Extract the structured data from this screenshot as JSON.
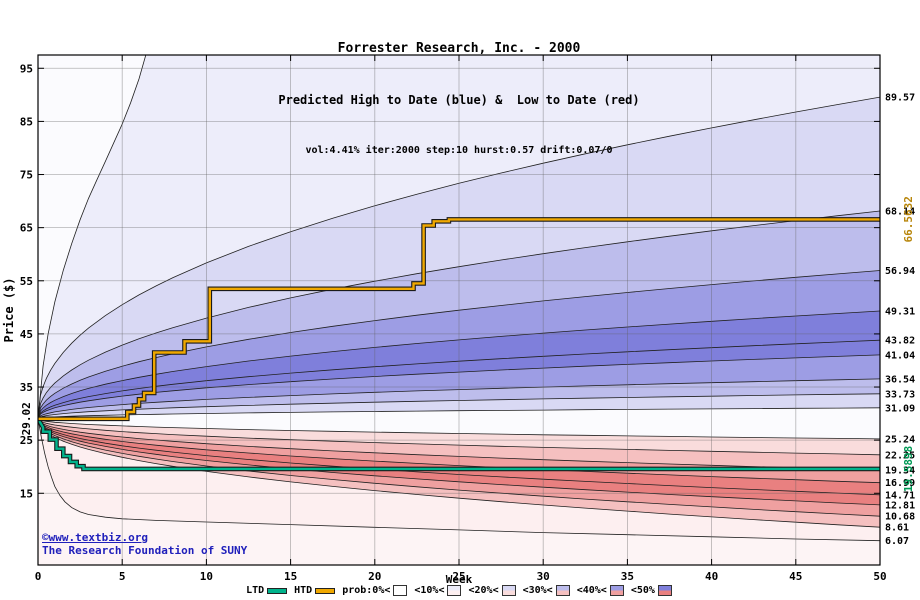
{
  "header": {
    "title": "Forrester Research, Inc. - 2000",
    "subtitle": "Predicted High to Date (blue) &  Low to Date (red)",
    "params": "vol:4.41% iter:2000 step:10 hurst:0.57 drift:0.07/0"
  },
  "watermark": {
    "link": "©www.textbiz.org",
    "org": "The Research Foundation of SUNY"
  },
  "chart_data": {
    "type": "area",
    "title": "Forrester Research, Inc. - 2000",
    "xlabel": "Week",
    "ylabel": "Price ($)",
    "xlim": [
      0,
      50
    ],
    "ylim": [
      1.5,
      97.5
    ],
    "x_ticks": [
      0,
      5,
      10,
      15,
      20,
      25,
      30,
      35,
      40,
      45,
      50
    ],
    "y_ticks": [
      15,
      25,
      35,
      45,
      55,
      65,
      75,
      85,
      95
    ],
    "grid": true,
    "start_price": 29.02,
    "start_label": "29.02",
    "shape_exponent": 0.45,
    "high_percentile_finals": [
      89.57,
      68.14,
      56.94,
      49.31,
      43.82,
      41.04,
      36.54,
      33.73,
      31.09
    ],
    "low_percentile_finals": [
      25.24,
      22.25,
      19.34,
      16.99,
      14.71,
      12.81,
      10.68,
      8.61
    ],
    "upper_envelope_points": [
      [
        0,
        29.02
      ],
      [
        0.3,
        39
      ],
      [
        0.6,
        45
      ],
      [
        1,
        51
      ],
      [
        1.5,
        57
      ],
      [
        2,
        62
      ],
      [
        2.5,
        66.5
      ],
      [
        3,
        70.5
      ],
      [
        3.5,
        74
      ],
      [
        4,
        77.5
      ],
      [
        4.5,
        81
      ],
      [
        5,
        84.5
      ],
      [
        5.5,
        88.5
      ],
      [
        6,
        93
      ],
      [
        6.4,
        97.5
      ],
      [
        6.7,
        101
      ]
    ],
    "lower_envelope_points": [
      [
        0,
        29.02
      ],
      [
        0.2,
        25.5
      ],
      [
        0.4,
        22.5
      ],
      [
        0.6,
        20
      ],
      [
        0.8,
        18
      ],
      [
        1,
        16.3
      ],
      [
        1.3,
        14.6
      ],
      [
        1.6,
        13.4
      ],
      [
        2,
        12.3
      ],
      [
        2.5,
        11.5
      ],
      [
        3,
        11.0
      ],
      [
        4,
        10.5
      ],
      [
        5,
        10.2
      ],
      [
        7,
        9.9
      ],
      [
        10,
        9.6
      ],
      [
        15,
        9.1
      ],
      [
        20,
        8.6
      ],
      [
        25,
        8.1
      ],
      [
        30,
        7.6
      ],
      [
        35,
        7.2
      ],
      [
        40,
        6.8
      ],
      [
        45,
        6.4
      ],
      [
        50,
        6.07
      ]
    ],
    "right_edge_labels": [
      "89.57",
      "68.14",
      "56.94",
      "49.31",
      "43.82",
      "41.04",
      "36.54",
      "33.73",
      "31.09",
      "25.24",
      "22.25",
      "19.34",
      "16.99",
      "14.71",
      "12.81",
      "10.68",
      "8.61",
      "6.07"
    ],
    "htd": {
      "final": 66.5632,
      "final_label": "66.5632",
      "points": [
        [
          0,
          29.02
        ],
        [
          5.3,
          29.02
        ],
        [
          5.3,
          30.3
        ],
        [
          5.7,
          30.3
        ],
        [
          5.7,
          31.5
        ],
        [
          6.0,
          31.5
        ],
        [
          6.0,
          32.7
        ],
        [
          6.3,
          32.7
        ],
        [
          6.3,
          33.9
        ],
        [
          6.9,
          33.9
        ],
        [
          6.9,
          41.5
        ],
        [
          8.7,
          41.5
        ],
        [
          8.7,
          43.6
        ],
        [
          10.2,
          43.6
        ],
        [
          10.2,
          53.5
        ],
        [
          22.3,
          53.5
        ],
        [
          22.3,
          54.5
        ],
        [
          22.9,
          54.5
        ],
        [
          22.9,
          65.4
        ],
        [
          23.5,
          65.4
        ],
        [
          23.5,
          66.2
        ],
        [
          24.4,
          66.2
        ],
        [
          24.4,
          66.5632
        ],
        [
          50,
          66.5632
        ]
      ]
    },
    "ltd": {
      "final": 19.5898,
      "final_label": "19.5898",
      "points": [
        [
          0,
          29.02
        ],
        [
          0.3,
          27.4
        ],
        [
          0.3,
          26.6
        ],
        [
          0.7,
          26.6
        ],
        [
          0.7,
          25.1
        ],
        [
          1.1,
          25.1
        ],
        [
          1.1,
          23.4
        ],
        [
          1.5,
          23.4
        ],
        [
          1.5,
          22.0
        ],
        [
          1.9,
          22.0
        ],
        [
          1.9,
          20.9
        ],
        [
          2.3,
          20.9
        ],
        [
          2.3,
          20.1
        ],
        [
          2.7,
          20.1
        ],
        [
          2.7,
          19.5898
        ],
        [
          50,
          19.5898
        ]
      ]
    },
    "blue_band_levels": [
      1,
      2,
      3,
      4,
      5,
      5,
      4,
      3,
      2
    ],
    "red_band_levels": [
      2,
      3,
      4,
      5,
      5,
      4,
      3,
      1
    ]
  },
  "colors": {
    "page_bg": "#ffffff",
    "plot_bg": "#fbfbfe",
    "below_envelope_fill": "#fdf4f5",
    "curve_stroke": "#202020",
    "grid": "rgba(96,96,96,0.45)",
    "border": "#000000",
    "title_text": "#000000",
    "watermark_text": "#2020bb",
    "htd_line": "#f0a800",
    "ltd_line": "#00b38c",
    "line_casing": "#1a1a1a",
    "htd_label": "#b8860b",
    "ltd_label": "#009955",
    "start_label": "#000000",
    "tick_label": "#000000",
    "blue_levels": [
      "#ffffff",
      "#ededfa",
      "#d9d9f4",
      "#bdbdec",
      "#9d9de4",
      "#7f7fdb"
    ],
    "red_levels": [
      "#ffffff",
      "#fdeff0",
      "#f9dcdc",
      "#f5c0c0",
      "#efa0a0",
      "#e98080"
    ]
  },
  "legend": {
    "items": [
      {
        "label": "LTD",
        "type": "line",
        "color": "#00b38c"
      },
      {
        "label": "HTD",
        "type": "line",
        "color": "#f0a800"
      },
      {
        "label": "prob:0%<",
        "type": "swatch",
        "blue": "#ffffff",
        "red": "#ffffff"
      },
      {
        "label": "<10%<",
        "type": "swatch",
        "blue": "#ededfa",
        "red": "#fdeff0"
      },
      {
        "label": "<20%<",
        "type": "swatch",
        "blue": "#d9d9f4",
        "red": "#f9dcdc"
      },
      {
        "label": "<30%<",
        "type": "swatch",
        "blue": "#bdbdec",
        "red": "#f5c0c0"
      },
      {
        "label": "<40%<",
        "type": "swatch",
        "blue": "#9d9de4",
        "red": "#efa0a0"
      },
      {
        "label": "<50%",
        "type": "swatch",
        "blue": "#7f7fdb",
        "red": "#e98080"
      }
    ]
  }
}
